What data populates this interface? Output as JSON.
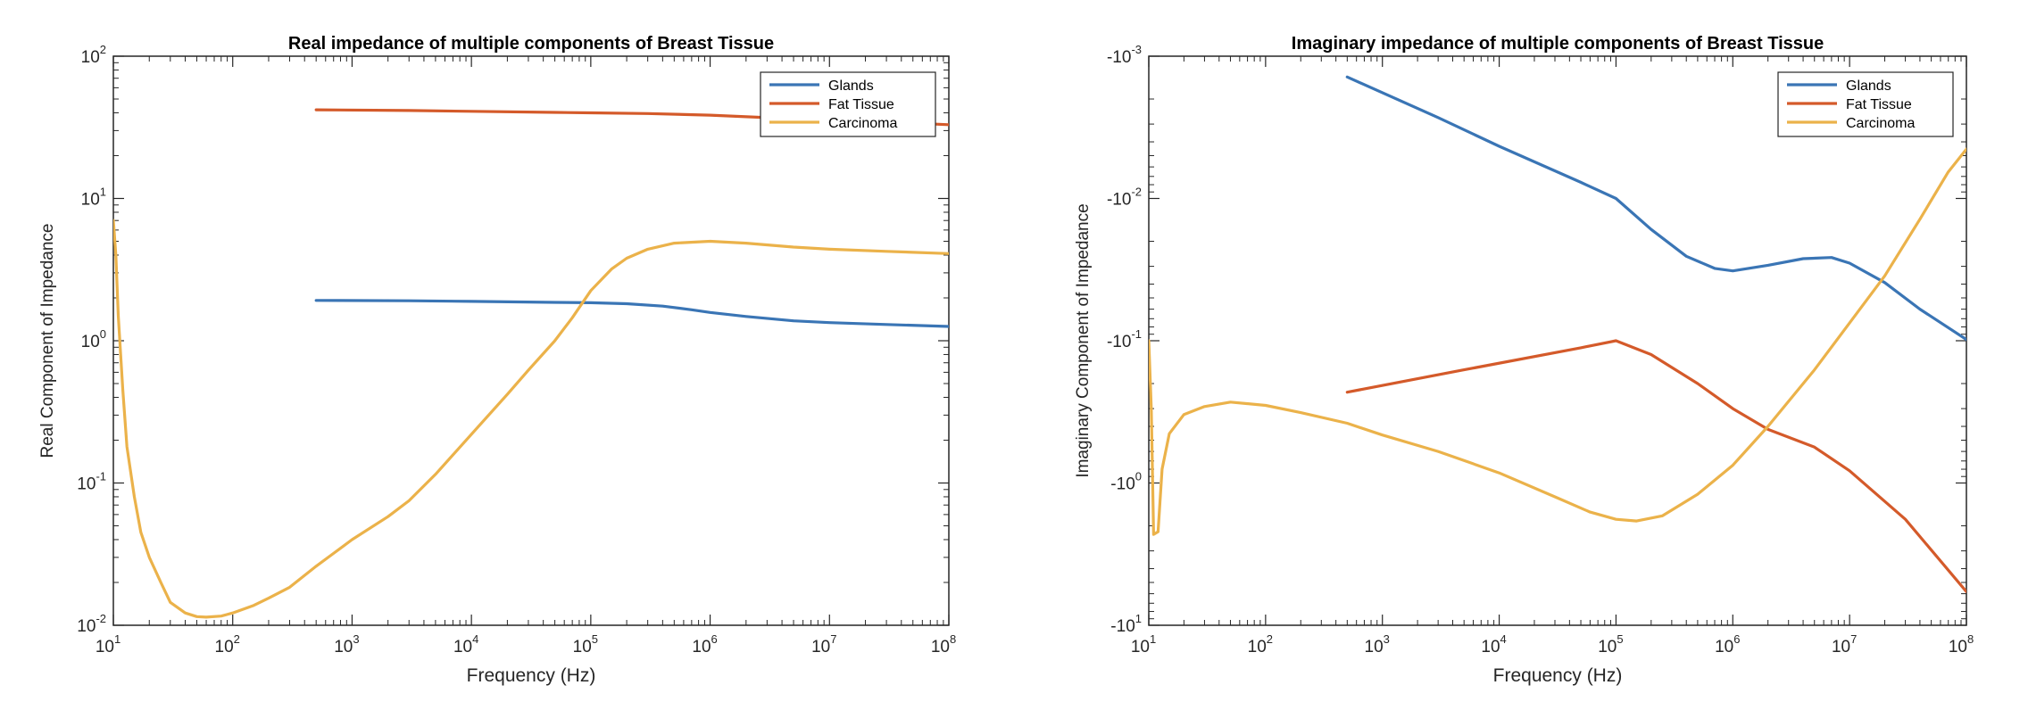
{
  "chart_data": [
    {
      "type": "line",
      "title": "Real impedance of multiple components of Breast Tissue",
      "xlabel": "Frequency (Hz)",
      "ylabel": "Real Component of Impedance",
      "xscale": "log",
      "yscale": "log",
      "xlim": [
        10,
        100000000
      ],
      "ylim": [
        0.01,
        100
      ],
      "x_ticks": [
        {
          "value": 10,
          "base": "10",
          "exp": "1"
        },
        {
          "value": 100,
          "base": "10",
          "exp": "2"
        },
        {
          "value": 1000,
          "base": "10",
          "exp": "3"
        },
        {
          "value": 10000,
          "base": "10",
          "exp": "4"
        },
        {
          "value": 100000,
          "base": "10",
          "exp": "5"
        },
        {
          "value": 1000000,
          "base": "10",
          "exp": "6"
        },
        {
          "value": 10000000,
          "base": "10",
          "exp": "7"
        },
        {
          "value": 100000000,
          "base": "10",
          "exp": "8"
        }
      ],
      "y_ticks": [
        {
          "value": 0.01,
          "base": "10",
          "exp": "-2"
        },
        {
          "value": 0.1,
          "base": "10",
          "exp": "-1"
        },
        {
          "value": 1,
          "base": "10",
          "exp": "0"
        },
        {
          "value": 10,
          "base": "10",
          "exp": "1"
        },
        {
          "value": 100,
          "base": "10",
          "exp": "2"
        }
      ],
      "grid": false,
      "legend_position": "top-right",
      "series": [
        {
          "name": "Glands",
          "color": "#3a75b5",
          "points": [
            [
              500,
              1.92
            ],
            [
              3000,
              1.91
            ],
            [
              10000,
              1.89
            ],
            [
              50000,
              1.86
            ],
            [
              100000,
              1.85
            ],
            [
              200000,
              1.82
            ],
            [
              400000,
              1.75
            ],
            [
              700000,
              1.65
            ],
            [
              1000000,
              1.58
            ],
            [
              2000000,
              1.48
            ],
            [
              5000000,
              1.38
            ],
            [
              10000000,
              1.34
            ],
            [
              30000000,
              1.3
            ],
            [
              100000000,
              1.26
            ]
          ]
        },
        {
          "name": "Fat Tissue",
          "color": "#d45a2a",
          "points": [
            [
              500,
              42
            ],
            [
              3000,
              41.5
            ],
            [
              10000,
              41
            ],
            [
              50000,
              40.3
            ],
            [
              100000,
              40
            ],
            [
              300000,
              39.5
            ],
            [
              1000000,
              38.5
            ],
            [
              3000000,
              37
            ],
            [
              10000000,
              35.5
            ],
            [
              30000000,
              34.5
            ],
            [
              100000000,
              33
            ]
          ]
        },
        {
          "name": "Carcinoma",
          "color": "#ebb24a",
          "points": [
            [
              10,
              7
            ],
            [
              10.5,
              4
            ],
            [
              11,
              1.5
            ],
            [
              12,
              0.45
            ],
            [
              13,
              0.18
            ],
            [
              15,
              0.08
            ],
            [
              17,
              0.045
            ],
            [
              20,
              0.03
            ],
            [
              25,
              0.02
            ],
            [
              30,
              0.0145
            ],
            [
              40,
              0.0122
            ],
            [
              50,
              0.0115
            ],
            [
              60,
              0.0114
            ],
            [
              80,
              0.0116
            ],
            [
              100,
              0.0122
            ],
            [
              150,
              0.0138
            ],
            [
              200,
              0.0155
            ],
            [
              300,
              0.0185
            ],
            [
              500,
              0.026
            ],
            [
              700,
              0.032
            ],
            [
              1000,
              0.04
            ],
            [
              2000,
              0.058
            ],
            [
              3000,
              0.075
            ],
            [
              5000,
              0.115
            ],
            [
              10000,
              0.22
            ],
            [
              20000,
              0.42
            ],
            [
              30000,
              0.62
            ],
            [
              50000,
              1.0
            ],
            [
              70000,
              1.45
            ],
            [
              100000,
              2.25
            ],
            [
              150000,
              3.2
            ],
            [
              200000,
              3.8
            ],
            [
              300000,
              4.4
            ],
            [
              500000,
              4.85
            ],
            [
              1000000,
              5.0
            ],
            [
              2000000,
              4.85
            ],
            [
              5000000,
              4.55
            ],
            [
              10000000,
              4.4
            ],
            [
              30000000,
              4.25
            ],
            [
              100000000,
              4.1
            ]
          ]
        }
      ]
    },
    {
      "type": "line",
      "title": "Imaginary impedance of multiple components of Breast Tissue",
      "xlabel": "Frequency (Hz)",
      "ylabel": "Imaginary Component of Impedance",
      "xscale": "log",
      "yscale": "log (negative values)",
      "xlim": [
        10,
        100000000
      ],
      "ylim": [
        -0.001,
        -10
      ],
      "x_ticks": [
        {
          "value": 10,
          "base": "10",
          "exp": "1"
        },
        {
          "value": 100,
          "base": "10",
          "exp": "2"
        },
        {
          "value": 1000,
          "base": "10",
          "exp": "3"
        },
        {
          "value": 10000,
          "base": "10",
          "exp": "4"
        },
        {
          "value": 100000,
          "base": "10",
          "exp": "5"
        },
        {
          "value": 1000000,
          "base": "10",
          "exp": "6"
        },
        {
          "value": 10000000,
          "base": "10",
          "exp": "7"
        },
        {
          "value": 100000000,
          "base": "10",
          "exp": "8"
        }
      ],
      "y_ticks": [
        {
          "value": -0.001,
          "base": "-10",
          "exp": "-3"
        },
        {
          "value": -0.01,
          "base": "-10",
          "exp": "-2"
        },
        {
          "value": -0.1,
          "base": "-10",
          "exp": "-1"
        },
        {
          "value": -1,
          "base": "-10",
          "exp": "0"
        },
        {
          "value": -10,
          "base": "-10",
          "exp": "1"
        }
      ],
      "grid": false,
      "legend_position": "top-right",
      "series": [
        {
          "name": "Glands",
          "color": "#3a75b5",
          "points": [
            [
              500,
              -0.0014
            ],
            [
              3000,
              -0.0027
            ],
            [
              10000,
              -0.0043
            ],
            [
              50000,
              -0.0077
            ],
            [
              100000,
              -0.01
            ],
            [
              200000,
              -0.0165
            ],
            [
              400000,
              -0.0255
            ],
            [
              700000,
              -0.031
            ],
            [
              1000000,
              -0.0323
            ],
            [
              2000000,
              -0.0295
            ],
            [
              4000000,
              -0.0265
            ],
            [
              7000000,
              -0.026
            ],
            [
              10000000,
              -0.0285
            ],
            [
              20000000,
              -0.039
            ],
            [
              40000000,
              -0.06
            ],
            [
              100000000,
              -0.098
            ]
          ]
        },
        {
          "name": "Fat Tissue",
          "color": "#d45a2a",
          "points": [
            [
              500,
              -0.23
            ],
            [
              5000,
              -0.16
            ],
            [
              50000,
              -0.112
            ],
            [
              100000,
              -0.1
            ],
            [
              200000,
              -0.125
            ],
            [
              500000,
              -0.2
            ],
            [
              1000000,
              -0.3
            ],
            [
              2000000,
              -0.42
            ],
            [
              5000000,
              -0.56
            ],
            [
              10000000,
              -0.82
            ],
            [
              30000000,
              -1.8
            ],
            [
              100000000,
              -5.8
            ]
          ]
        },
        {
          "name": "Carcinoma",
          "color": "#ebb24a",
          "points": [
            [
              10,
              -0.1
            ],
            [
              10.5,
              -0.3
            ],
            [
              11,
              -2.3
            ],
            [
              12,
              -2.2
            ],
            [
              13,
              -0.8
            ],
            [
              15,
              -0.45
            ],
            [
              20,
              -0.33
            ],
            [
              30,
              -0.29
            ],
            [
              50,
              -0.27
            ],
            [
              100,
              -0.285
            ],
            [
              200,
              -0.32
            ],
            [
              500,
              -0.38
            ],
            [
              1000,
              -0.46
            ],
            [
              3000,
              -0.6
            ],
            [
              10000,
              -0.85
            ],
            [
              30000,
              -1.25
            ],
            [
              60000,
              -1.6
            ],
            [
              100000,
              -1.8
            ],
            [
              150000,
              -1.85
            ],
            [
              250000,
              -1.7
            ],
            [
              500000,
              -1.2
            ],
            [
              1000000,
              -0.75
            ],
            [
              2000000,
              -0.4
            ],
            [
              5000000,
              -0.16
            ],
            [
              10000000,
              -0.075
            ],
            [
              20000000,
              -0.035
            ],
            [
              40000000,
              -0.014
            ],
            [
              70000000,
              -0.0065
            ],
            [
              100000000,
              -0.0045
            ]
          ]
        }
      ]
    }
  ]
}
